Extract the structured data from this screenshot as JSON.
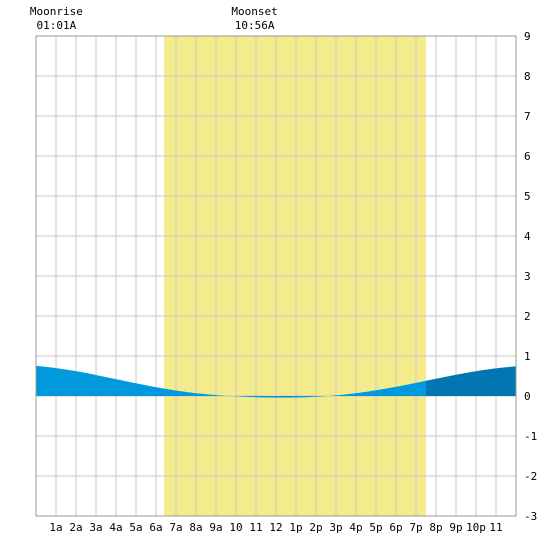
{
  "chart_data": {
    "type": "area",
    "title": "",
    "xlabel": "",
    "ylabel": "",
    "x_hours": [
      0,
      2,
      4,
      6,
      8,
      10,
      12,
      14,
      16,
      18,
      20,
      22,
      24
    ],
    "x_tick_labels": [
      "1a",
      "2a",
      "3a",
      "4a",
      "5a",
      "6a",
      "7a",
      "8a",
      "9a",
      "10",
      "11",
      "12",
      "1p",
      "2p",
      "3p",
      "4p",
      "5p",
      "6p",
      "7p",
      "8p",
      "9p",
      "10p",
      "11"
    ],
    "xlim": [
      0,
      24
    ],
    "ylim": [
      -3,
      9
    ],
    "y_ticks": [
      -3,
      -2,
      -1,
      0,
      1,
      2,
      3,
      4,
      5,
      6,
      7,
      8,
      9
    ],
    "grid": true,
    "daylight": {
      "start_hour": 6.4,
      "end_hour": 19.5,
      "color": "#f4ec8c"
    },
    "series": [
      {
        "values": [
          0.75,
          0.62,
          0.42,
          0.22,
          0.07,
          -0.01,
          -0.04,
          -0.02,
          0.07,
          0.23,
          0.43,
          0.62,
          0.74
        ],
        "color_light": "#0099dd",
        "color_dark": "#0077b3"
      }
    ],
    "annotations": [
      {
        "title": "Moonrise",
        "time": "01:01A",
        "hour": 1.02
      },
      {
        "title": "Moonset",
        "time": "10:56A",
        "hour": 10.93
      }
    ]
  }
}
